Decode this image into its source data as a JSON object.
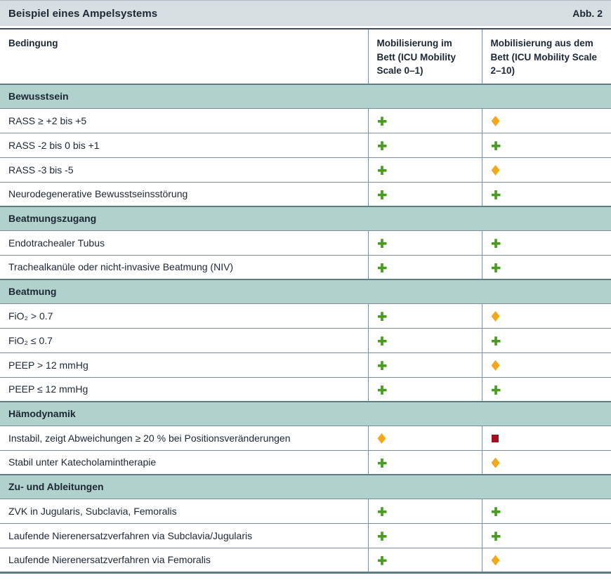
{
  "title": {
    "text": "Beispiel eines Ampelsystems",
    "figure_label": "Abb. 2"
  },
  "table": {
    "columns": [
      {
        "label": "Bedingung"
      },
      {
        "label": "Mobilisierung im Bett (ICU Mobility Scale 0–1)"
      },
      {
        "label": "Mobilisierung aus dem Bett (ICU Mobility Scale 2–10)"
      }
    ],
    "symbols": {
      "plus": {
        "name": "green-plus",
        "color": "#4a9b21"
      },
      "diamond": {
        "name": "yellow-diamond",
        "color": "#f5a71b"
      },
      "square": {
        "name": "red-square",
        "color": "#a30f1e"
      }
    },
    "sections": [
      {
        "header": "Bewusstsein",
        "rows": [
          {
            "label": "RASS ≥ +2 bis +5",
            "in_bed": "plus",
            "out_of_bed": "diamond"
          },
          {
            "label": "RASS -2 bis 0 bis +1",
            "in_bed": "plus",
            "out_of_bed": "plus"
          },
          {
            "label": "RASS -3 bis -5",
            "in_bed": "plus",
            "out_of_bed": "diamond"
          },
          {
            "label": "Neurodegenerative Bewusstseinsstörung",
            "in_bed": "plus",
            "out_of_bed": "plus"
          }
        ]
      },
      {
        "header": "Beatmungszugang",
        "rows": [
          {
            "label": "Endotrachealer Tubus",
            "in_bed": "plus",
            "out_of_bed": "plus"
          },
          {
            "label": "Trachealkanüle oder nicht-invasive Beatmung (NIV)",
            "in_bed": "plus",
            "out_of_bed": "plus"
          }
        ]
      },
      {
        "header": "Beatmung",
        "rows": [
          {
            "label": "FiO₂ > 0.7",
            "in_bed": "plus",
            "out_of_bed": "diamond"
          },
          {
            "label": "FiO₂ ≤ 0.7",
            "in_bed": "plus",
            "out_of_bed": "plus"
          },
          {
            "label": "PEEP > 12 mmHg",
            "in_bed": "plus",
            "out_of_bed": "diamond"
          },
          {
            "label": "PEEP ≤ 12 mmHg",
            "in_bed": "plus",
            "out_of_bed": "plus"
          }
        ]
      },
      {
        "header": "Hämodynamik",
        "rows": [
          {
            "label": "Instabil, zeigt Abweichungen ≥ 20 % bei Positionsveränderungen",
            "in_bed": "diamond",
            "out_of_bed": "square"
          },
          {
            "label": "Stabil unter Katecholamintherapie",
            "in_bed": "plus",
            "out_of_bed": "diamond"
          }
        ]
      },
      {
        "header": "Zu- und Ableitungen",
        "rows": [
          {
            "label": "ZVK in Jugularis, Subclavia, Femoralis",
            "in_bed": "plus",
            "out_of_bed": "plus"
          },
          {
            "label": "Laufende Nierenersatzverfahren via Subclavia/Jugularis",
            "in_bed": "plus",
            "out_of_bed": "plus"
          },
          {
            "label": "Laufende Nierenersatzverfahren via Femoralis",
            "in_bed": "plus",
            "out_of_bed": "diamond"
          }
        ]
      }
    ]
  },
  "colors": {
    "title_band": "#d6dee2",
    "section_band": "#b1d1cd",
    "grid_line": "#7c8e98",
    "dark_rule": "#3f4c55",
    "section_border": "#5e7e86",
    "text": "#1d2733"
  }
}
